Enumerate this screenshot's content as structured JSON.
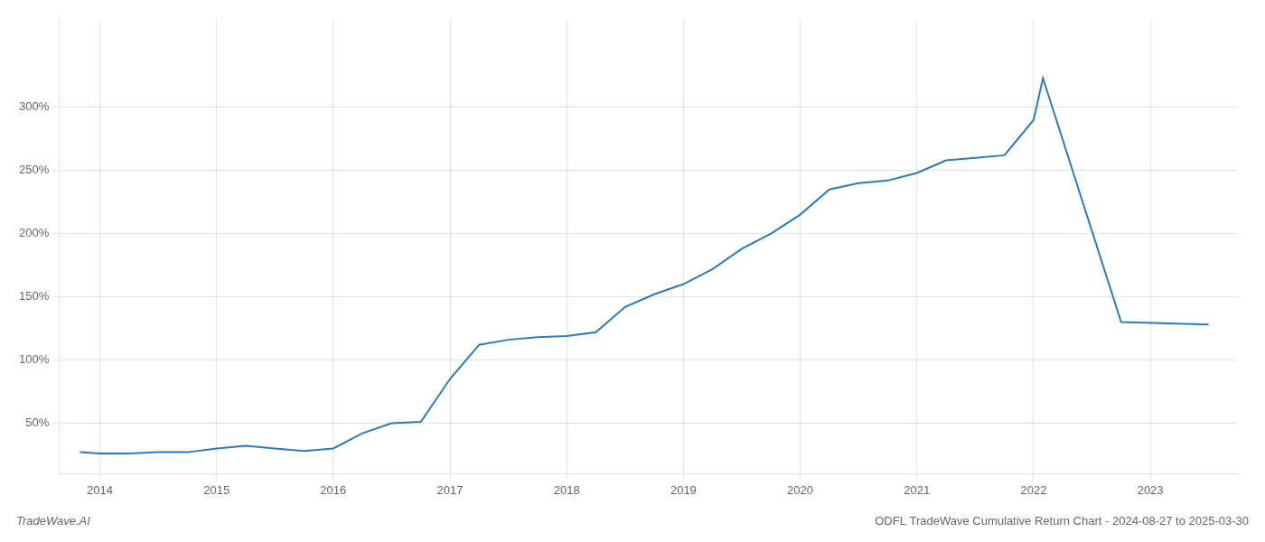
{
  "chart_data": {
    "type": "line",
    "title": "ODFL TradeWave Cumulative Return Chart - 2024-08-27 to 2025-03-30",
    "annotations": [
      "TradeWave.AI"
    ],
    "x": [
      2013.83,
      2014.0,
      2014.25,
      2014.5,
      2014.75,
      2015.0,
      2015.25,
      2015.5,
      2015.75,
      2016.0,
      2016.25,
      2016.5,
      2016.75,
      2017.0,
      2017.25,
      2017.5,
      2017.75,
      2018.0,
      2018.25,
      2018.5,
      2018.75,
      2019.0,
      2019.25,
      2019.5,
      2019.75,
      2020.0,
      2020.25,
      2020.5,
      2020.75,
      2021.0,
      2021.25,
      2021.5,
      2021.75,
      2022.0,
      2022.08,
      2022.75,
      2023.5
    ],
    "values": [
      27,
      26,
      26,
      27,
      27,
      30,
      32,
      30,
      28,
      30,
      42,
      50,
      51,
      85,
      112,
      116,
      118,
      119,
      122,
      142,
      152,
      160,
      172,
      188,
      200,
      215,
      235,
      240,
      242,
      248,
      258,
      260,
      262,
      290,
      323,
      130,
      128
    ],
    "color": "#2b7bba",
    "xlim": [
      2013.65,
      2023.75
    ],
    "xticks": [
      2014,
      2015,
      2016,
      2017,
      2018,
      2019,
      2020,
      2021,
      2022,
      2023
    ],
    "ylim": [
      10,
      370
    ],
    "yticks": [
      {
        "value": 50,
        "label": "50%"
      },
      {
        "value": 100,
        "label": "100%"
      },
      {
        "value": 150,
        "label": "150%"
      },
      {
        "value": 200,
        "label": "200%"
      },
      {
        "value": 250,
        "label": "250%"
      },
      {
        "value": 300,
        "label": "300%"
      }
    ],
    "grid": true
  }
}
